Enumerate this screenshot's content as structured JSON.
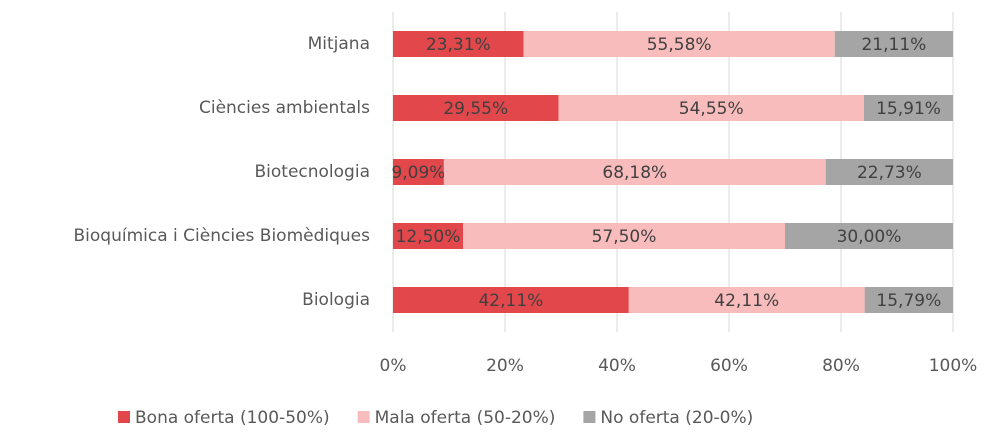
{
  "chart_data": {
    "type": "stacked_barh",
    "categories": [
      "Mitjana",
      "Ciències ambientals",
      "Biotecnologia",
      "Bioquímica i Ciències Biomèdiques",
      "Biologia"
    ],
    "series": [
      {
        "name": "Bona oferta (100-50%)",
        "color": "#e2474b",
        "values": [
          23.31,
          29.55,
          9.09,
          12.5,
          42.11
        ],
        "value_labels": [
          "23,31%",
          "29,55%",
          "9,09%",
          "12,50%",
          "42,11%"
        ]
      },
      {
        "name": "Mala oferta (50-20%)",
        "color": "#f8bcbc",
        "values": [
          55.58,
          54.55,
          68.18,
          57.5,
          42.11
        ],
        "value_labels": [
          "55,58%",
          "54,55%",
          "68,18%",
          "57,50%",
          "42,11%"
        ]
      },
      {
        "name": "No oferta (20-0%)",
        "color": "#a5a5a5",
        "values": [
          21.11,
          15.91,
          22.73,
          30.0,
          15.79
        ],
        "value_labels": [
          "21,11%",
          "15,91%",
          "22,73%",
          "30,00%",
          "15,79%"
        ]
      }
    ],
    "xlim": [
      0,
      100
    ],
    "xticks": [
      {
        "value": 0,
        "label": "0%"
      },
      {
        "value": 20,
        "label": "20%"
      },
      {
        "value": 40,
        "label": "40%"
      },
      {
        "value": 60,
        "label": "60%"
      },
      {
        "value": 80,
        "label": "80%"
      },
      {
        "value": 100,
        "label": "100%"
      }
    ],
    "grid": true,
    "legend": "bottom"
  }
}
